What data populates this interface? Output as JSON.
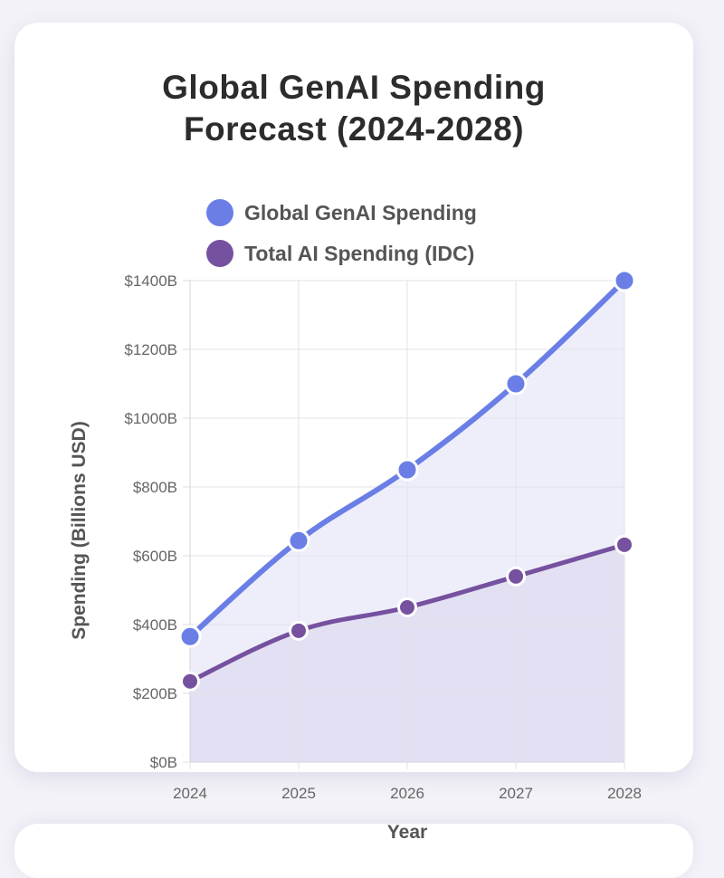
{
  "chart_data": {
    "type": "line",
    "title_lines": [
      "Global GenAI Spending",
      "Forecast (2024-2028)"
    ],
    "xlabel": "Year",
    "ylabel": "Spending (Billions USD)",
    "categories": [
      "2024",
      "2025",
      "2026",
      "2027",
      "2028"
    ],
    "ylim": [
      0,
      1400
    ],
    "y_ticks": [
      "$0B",
      "$200B",
      "$400B",
      "$600B",
      "$800B",
      "$1000B",
      "$1200B",
      "$1400B"
    ],
    "y_tick_values": [
      0,
      200,
      400,
      600,
      800,
      1000,
      1200,
      1400
    ],
    "grid": true,
    "legend_position": "top",
    "filled": true,
    "series": [
      {
        "name": "Global GenAI Spending",
        "values": [
          365,
          644,
          850,
          1100,
          1400
        ],
        "color": "#6a7ee6",
        "fill": "#eeeefb"
      },
      {
        "name": "Total AI Spending (IDC)",
        "values": [
          235,
          382,
          450,
          540,
          632
        ],
        "color": "#76519f",
        "fill": "#e2e0f2"
      }
    ]
  }
}
